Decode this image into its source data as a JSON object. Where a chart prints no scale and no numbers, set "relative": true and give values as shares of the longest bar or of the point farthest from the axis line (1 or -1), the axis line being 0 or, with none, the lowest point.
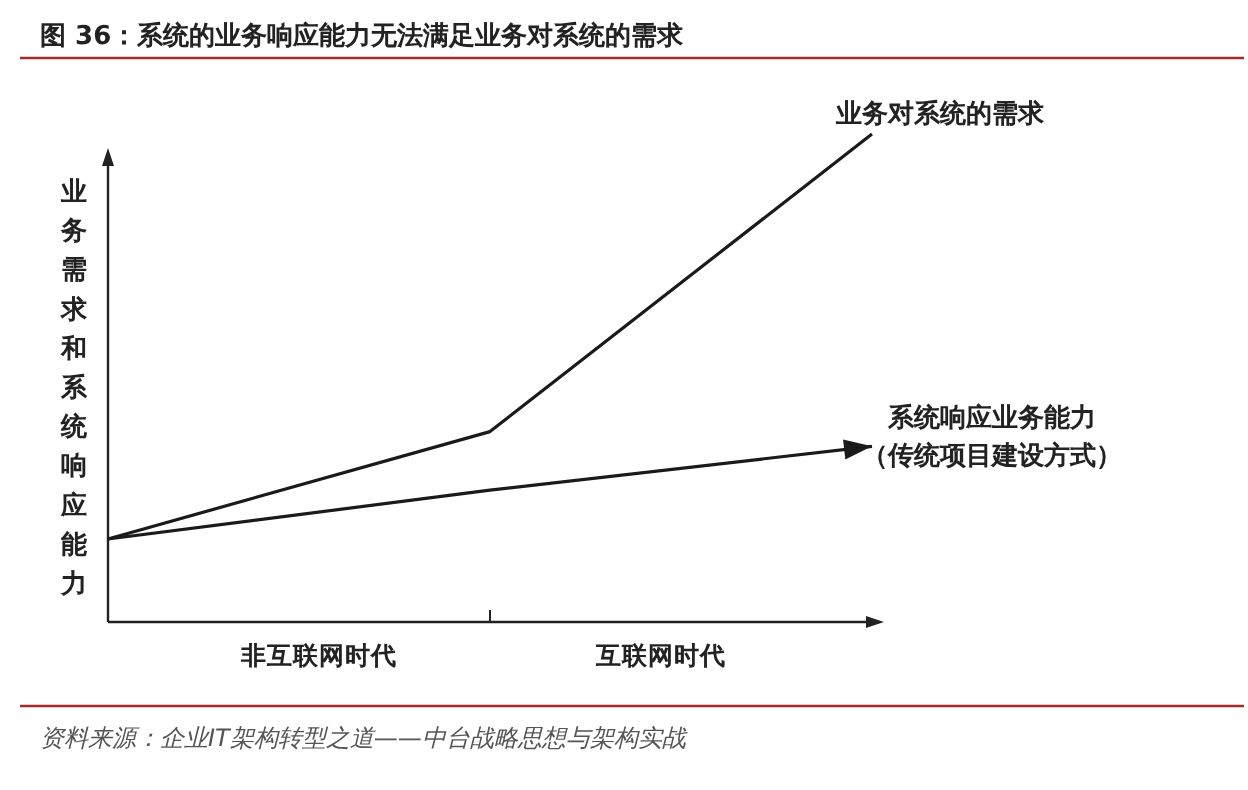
{
  "chart_data": {
    "type": "line",
    "relative": true,
    "title": "图 36：系统的业务响应能力无法满足业务对系统的需求",
    "ylabel": "业务需求和系统响应能力",
    "categories": [
      null,
      null,
      null
    ],
    "series": [
      {
        "name": "业务对系统的需求",
        "color": "#1a1a1a",
        "values": [
          0.17,
          0.39,
          1
        ]
      },
      {
        "name": "系统响应业务能力（传统项目建设方式）",
        "color": "#1a1a1a",
        "values": [
          0.17,
          0.27,
          0.36
        ]
      }
    ],
    "annotations": [
      "非互联网时代",
      "互联网时代",
      "资料来源：企业IT架构转型之道——中台战略思想与架构实战"
    ],
    "marker": "none",
    "line_style": "solid",
    "grid": false
  }
}
